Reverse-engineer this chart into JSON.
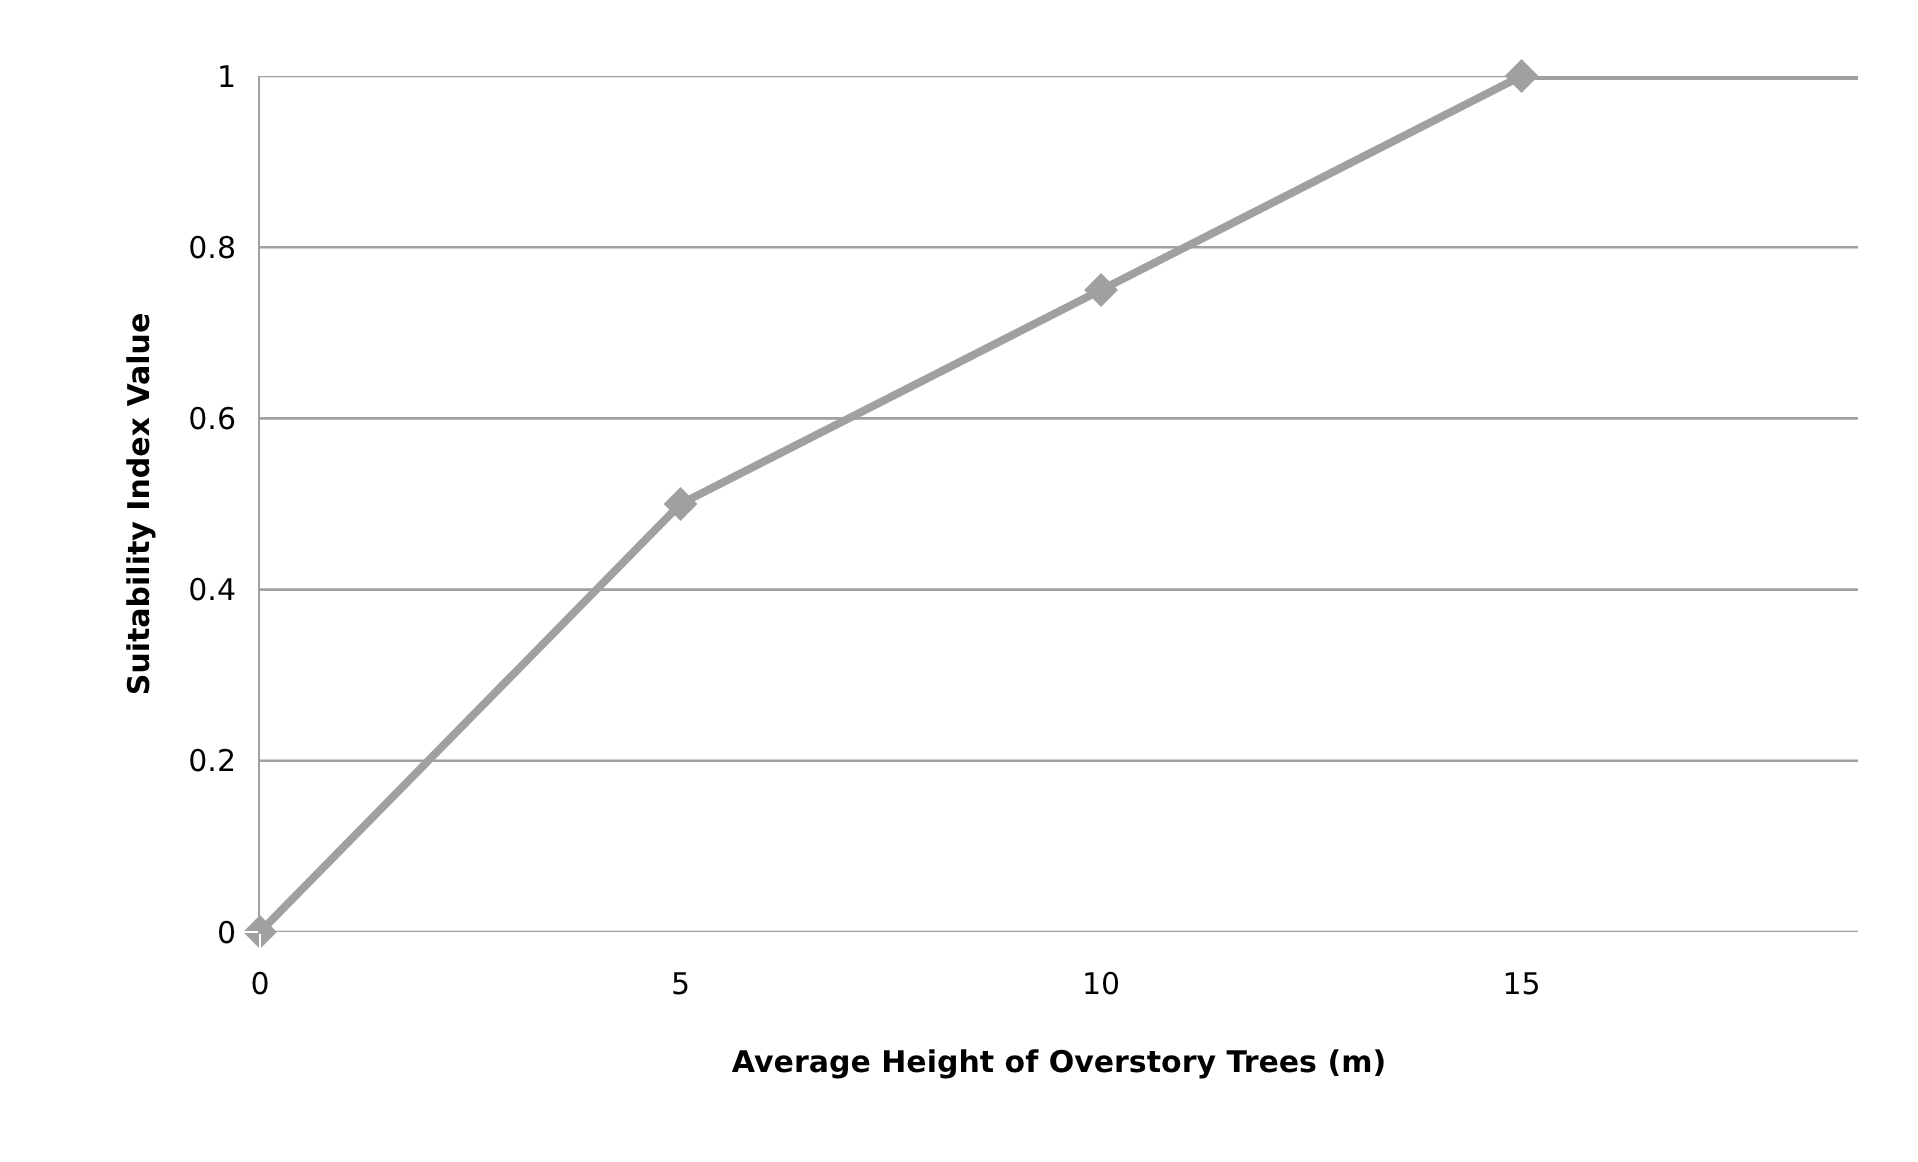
{
  "chart_data": {
    "type": "line",
    "xlabel": "Average Height of Overstory Trees (m)",
    "ylabel": "Suitability Index Value",
    "series": [
      {
        "x": [
          0,
          5,
          10,
          15
        ],
        "values": [
          0,
          0.5,
          0.75,
          1
        ],
        "color": "#a0a0a0",
        "marker": "diamond"
      },
      {
        "x": [
          15,
          19
        ],
        "values": [
          1,
          1
        ],
        "color": "#a0a0a0",
        "marker": "none"
      }
    ],
    "xlim": [
      0,
      19
    ],
    "xticks": [
      0,
      5,
      10,
      15
    ],
    "ylim": [
      0,
      1
    ],
    "yticks": [
      0,
      0.2,
      0.4,
      0.6,
      0.8,
      1
    ],
    "grid": "y",
    "line_style": "solid"
  }
}
